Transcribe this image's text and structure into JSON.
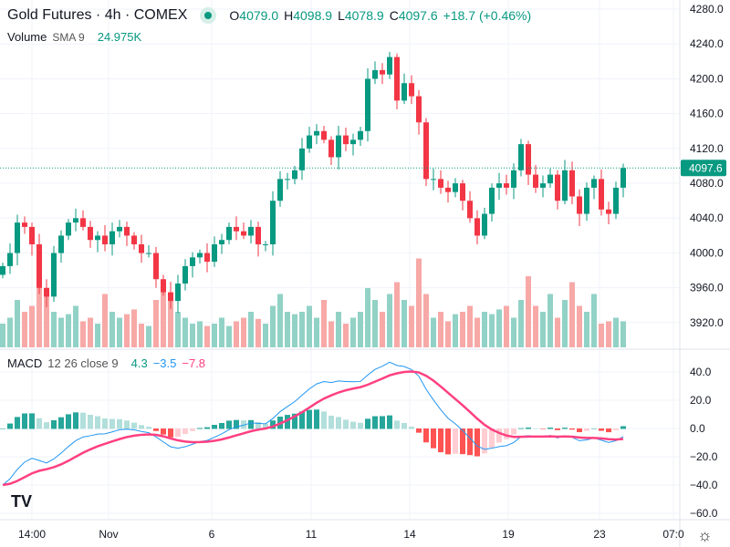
{
  "header": {
    "symbol": "Gold Futures · 4h · COMEX",
    "open_label": "O",
    "open": "4079.0",
    "high_label": "H",
    "high": "4098.9",
    "low_label": "L",
    "low": "4078.9",
    "close_label": "C",
    "close": "4097.6",
    "change": "+18.7 (+0.46%)"
  },
  "volume_legend": {
    "name": "Volume",
    "params": "SMA 9",
    "value": "24.975K"
  },
  "macd_legend": {
    "name": "MACD",
    "params": "12 26 close 9",
    "histogram": "4.3",
    "macd": "−3.5",
    "signal": "−7.8"
  },
  "price_axis": [
    "4280.0",
    "4240.0",
    "4200.0",
    "4160.0",
    "4120.0",
    "4080.0",
    "4040.0",
    "4000.0",
    "3960.0",
    "3920.0"
  ],
  "current_price": "4097.6",
  "macd_axis": [
    "40.0",
    "20.0",
    "0.0",
    "−20.0",
    "−40.0",
    "−60.0"
  ],
  "time_axis": [
    "14:00",
    "Nov",
    "6",
    "11",
    "14",
    "19",
    "23",
    "07:0"
  ],
  "colors": {
    "up": "#089981",
    "down": "#f23645",
    "macd": "#2196f3",
    "signal": "#ff4081"
  },
  "chart_data": {
    "type": "candlestick",
    "closes": [
      3985,
      4000,
      4035,
      4030,
      4010,
      3960,
      3950,
      4000,
      4020,
      4035,
      4040,
      4030,
      4015,
      4020,
      4010,
      4025,
      4030,
      4020,
      4010,
      4000,
      4000,
      3970,
      3955,
      3945,
      3965,
      3985,
      3995,
      4000,
      3990,
      4010,
      4015,
      4030,
      4025,
      4020,
      4030,
      4010,
      4010,
      4060,
      4085,
      4085,
      4095,
      4120,
      4135,
      4140,
      4130,
      4110,
      4135,
      4125,
      4130,
      4140,
      4200,
      4210,
      4205,
      4225,
      4175,
      4195,
      4180,
      4150,
      4085,
      4085,
      4075,
      4070,
      4080,
      4060,
      4040,
      4020,
      4045,
      4075,
      4080,
      4075,
      4095,
      4125,
      4090,
      4075,
      4080,
      4090,
      4060,
      4095,
      4065,
      4045,
      4075,
      4085,
      4050,
      4045,
      4075,
      4097.6
    ],
    "volumes": [
      20,
      25,
      40,
      30,
      35,
      70,
      45,
      30,
      25,
      28,
      35,
      22,
      25,
      20,
      45,
      30,
      25,
      28,
      32,
      20,
      18,
      40,
      55,
      45,
      30,
      25,
      20,
      22,
      18,
      20,
      25,
      18,
      22,
      25,
      30,
      24,
      20,
      35,
      45,
      30,
      28,
      30,
      35,
      25,
      40,
      22,
      30,
      20,
      25,
      30,
      50,
      40,
      30,
      45,
      55,
      40,
      35,
      75,
      45,
      25,
      30,
      22,
      28,
      30,
      35,
      25,
      30,
      28,
      32,
      35,
      25,
      40,
      60,
      35,
      30,
      45,
      25,
      40,
      55,
      35,
      30,
      45,
      20,
      22,
      25,
      22
    ],
    "ylim": [
      3900,
      4290
    ]
  }
}
